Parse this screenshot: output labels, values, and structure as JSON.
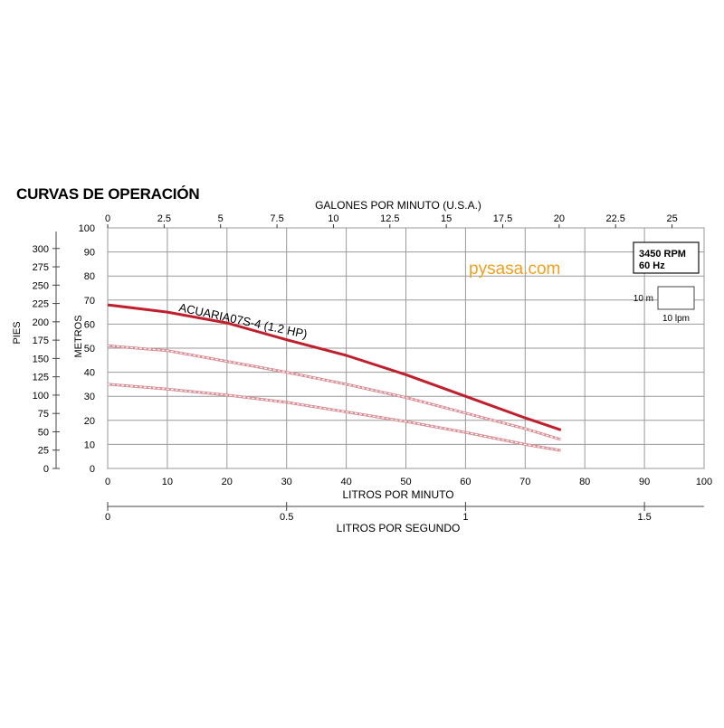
{
  "title": "CURVAS DE OPERACIÓN",
  "watermark": "pysasa.com",
  "rating_box": {
    "rpm": "3450 RPM",
    "hz": "60 Hz"
  },
  "scale_box": {
    "vertical": "10 m",
    "horizontal": "10 lpm"
  },
  "colors": {
    "curve": "#c0202d",
    "grid": "#9a9a9a",
    "watermark": "#f0a020"
  },
  "chart_data": {
    "type": "line",
    "grid": true,
    "x": [
      0,
      10,
      20,
      30,
      40,
      50,
      60,
      70,
      76
    ],
    "series": [
      {
        "name": "ACUARIA07S-4 (1.2 HP)",
        "values": [
          68,
          65,
          60.5,
          53.5,
          47,
          39,
          30,
          21,
          16
        ]
      },
      {
        "name": "",
        "values": [
          51,
          49,
          44.5,
          40,
          35,
          29.5,
          23,
          16.5,
          12
        ]
      },
      {
        "name": "",
        "values": [
          35,
          33,
          30.5,
          27.5,
          23.5,
          19.5,
          15,
          10,
          7.5
        ]
      }
    ],
    "axes": {
      "x_bottom": {
        "label": "LITROS POR MINUTO",
        "range": [
          0,
          100
        ],
        "ticks": [
          0,
          10,
          20,
          30,
          40,
          50,
          60,
          70,
          80,
          90,
          100
        ]
      },
      "x_top": {
        "label": "GALONES POR MINUTO (U.S.A.)",
        "range": [
          0,
          26.42
        ],
        "ticks": [
          "0",
          "2.5",
          "5",
          "7.5",
          "10",
          "12.5",
          "15",
          "17.5",
          "20",
          "22.5",
          "25"
        ]
      },
      "x_second": {
        "label": "LITROS POR SEGUNDO",
        "range": [
          0,
          1.667
        ],
        "ticks": [
          "0",
          "0.5",
          "1",
          "1.5"
        ]
      },
      "y_left": {
        "label": "METROS",
        "range": [
          0,
          100
        ],
        "ticks": [
          0,
          10,
          20,
          30,
          40,
          50,
          60,
          70,
          80,
          90,
          100
        ]
      },
      "y_far": {
        "label": "PIES",
        "range": [
          0,
          328.1
        ],
        "ticks": [
          0,
          25,
          50,
          75,
          100,
          125,
          150,
          175,
          200,
          225,
          250,
          275,
          300
        ]
      }
    }
  }
}
